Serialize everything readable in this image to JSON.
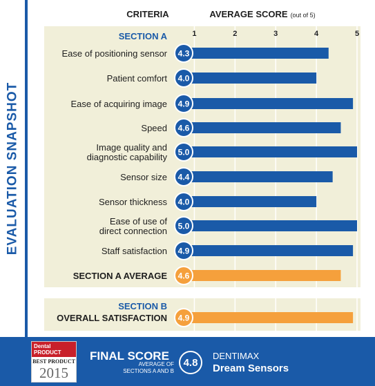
{
  "side_title": "EVALUATION SNAPSHOT",
  "header": {
    "criteria": "CRITERIA",
    "average_score": "AVERAGE SCORE",
    "average_score_suffix": "(out of 5)"
  },
  "chart_data": {
    "type": "bar",
    "orientation": "horizontal",
    "xlim": [
      0.5,
      5
    ],
    "ticks": [
      1,
      2,
      3,
      4,
      5
    ],
    "grid": true,
    "colors": {
      "criteria_bar": "#1a5aa8",
      "average_bar": "#f5a03c",
      "panel": "#f1efd9",
      "badge": "#1a5aa8"
    },
    "sections": [
      {
        "name": "SECTION A",
        "rows": [
          {
            "lines": [
              "Ease of positioning sensor"
            ],
            "value": 4.3,
            "label": "4.3"
          },
          {
            "lines": [
              "Patient comfort"
            ],
            "value": 4.0,
            "label": "4.0"
          },
          {
            "lines": [
              "Ease of acquiring image"
            ],
            "value": 4.9,
            "label": "4.9"
          },
          {
            "lines": [
              "Speed"
            ],
            "value": 4.6,
            "label": "4.6"
          },
          {
            "lines": [
              "Image quality and",
              "diagnostic capability"
            ],
            "value": 5.0,
            "label": "5.0"
          },
          {
            "lines": [
              "Sensor size"
            ],
            "value": 4.4,
            "label": "4.4"
          },
          {
            "lines": [
              "Sensor thickness"
            ],
            "value": 4.0,
            "label": "4.0"
          },
          {
            "lines": [
              "Ease of use of",
              "direct connection"
            ],
            "value": 5.0,
            "label": "5.0"
          },
          {
            "lines": [
              "Staff satisfaction"
            ],
            "value": 4.9,
            "label": "4.9"
          }
        ],
        "average": {
          "lines": [
            "SECTION A AVERAGE"
          ],
          "value": 4.6,
          "label": "4.6"
        }
      },
      {
        "name": "SECTION B",
        "rows": [],
        "average": {
          "lines": [
            "OVERALL SATISFACTION"
          ],
          "value": 4.9,
          "label": "4.9"
        }
      }
    ]
  },
  "footer": {
    "logo": {
      "line1": "Dental",
      "line2": "PRODUCT",
      "line3": "SHOPPER",
      "line4": "BEST PRODUCT",
      "year": "2015"
    },
    "final_score_label": "FINAL SCORE",
    "final_score_sub1": "AVERAGE OF",
    "final_score_sub2": "SECTIONS A AND B",
    "final_score_value": "4.8",
    "brand": "DENTIMAX",
    "product": "Dream Sensors"
  }
}
